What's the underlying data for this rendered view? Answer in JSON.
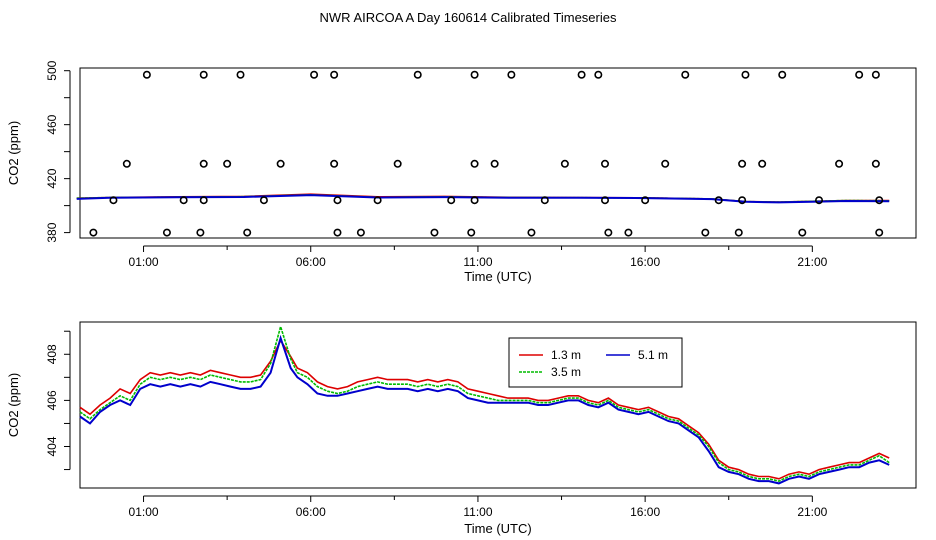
{
  "title": "NWR AIRCOA A  Day 160614  Calibrated Timeseries",
  "colors": {
    "s13": "#dd0000",
    "s35": "#00bb00",
    "s51": "#0000cc",
    "axis": "#000000"
  },
  "chart_data": [
    {
      "type": "scatter",
      "panel": "top",
      "xlabel": "Time (UTC)",
      "ylabel": "CO2 (ppm)",
      "xlim": [
        -0.9,
        24.1
      ],
      "ylim": [
        376,
        502
      ],
      "xticks": [
        1,
        6,
        11,
        16,
        21
      ],
      "xtick_labels": [
        "01:00",
        "06:00",
        "11:00",
        "16:00",
        "21:00"
      ],
      "yticks": [
        380,
        420,
        460,
        500
      ],
      "ytick_labels": [
        "380",
        "420",
        "460",
        "500"
      ],
      "yminor": [
        400,
        440,
        480
      ],
      "points": [
        [
          -0.5,
          380
        ],
        [
          0.1,
          404
        ],
        [
          0.5,
          431
        ],
        [
          1.1,
          497
        ],
        [
          1.7,
          380
        ],
        [
          2.2,
          404
        ],
        [
          2.7,
          380
        ],
        [
          2.8,
          404
        ],
        [
          2.8,
          431
        ],
        [
          2.8,
          497
        ],
        [
          3.5,
          431
        ],
        [
          3.9,
          497
        ],
        [
          4.1,
          380
        ],
        [
          4.6,
          404
        ],
        [
          5.1,
          431
        ],
        [
          6.1,
          497
        ],
        [
          6.7,
          497
        ],
        [
          6.7,
          431
        ],
        [
          6.8,
          380
        ],
        [
          6.8,
          404
        ],
        [
          7.5,
          380
        ],
        [
          8.0,
          404
        ],
        [
          8.6,
          431
        ],
        [
          9.2,
          497
        ],
        [
          9.7,
          380
        ],
        [
          10.2,
          404
        ],
        [
          10.8,
          380
        ],
        [
          10.9,
          404
        ],
        [
          10.9,
          431
        ],
        [
          10.9,
          497
        ],
        [
          11.5,
          431
        ],
        [
          12.0,
          497
        ],
        [
          12.6,
          380
        ],
        [
          13.0,
          404
        ],
        [
          13.6,
          431
        ],
        [
          14.1,
          497
        ],
        [
          14.6,
          497
        ],
        [
          14.8,
          431
        ],
        [
          14.8,
          404
        ],
        [
          14.9,
          380
        ],
        [
          15.5,
          380
        ],
        [
          16.0,
          404
        ],
        [
          16.6,
          431
        ],
        [
          17.2,
          497
        ],
        [
          17.8,
          380
        ],
        [
          18.2,
          404
        ],
        [
          18.8,
          380
        ],
        [
          18.9,
          404
        ],
        [
          18.9,
          431
        ],
        [
          19.0,
          497
        ],
        [
          19.5,
          431
        ],
        [
          20.1,
          497
        ],
        [
          20.7,
          380
        ],
        [
          21.2,
          404
        ],
        [
          21.8,
          431
        ],
        [
          22.4,
          497
        ],
        [
          22.9,
          431
        ],
        [
          22.9,
          497
        ],
        [
          23.0,
          404
        ],
        [
          23.0,
          380
        ]
      ],
      "series": [
        {
          "name": "1.3 m",
          "x": [
            -1,
            0,
            2,
            4,
            6,
            8,
            10,
            12,
            14,
            16,
            18,
            19,
            20,
            21,
            22,
            23.3
          ],
          "y": [
            405.5,
            406,
            406.5,
            406.8,
            408.5,
            406.5,
            406.8,
            406.2,
            406.0,
            405.8,
            405,
            403,
            402.6,
            403.2,
            403.8,
            403.7
          ]
        },
        {
          "name": "3.5 m",
          "x": [
            -1,
            0,
            2,
            4,
            6,
            8,
            10,
            12,
            14,
            16,
            18,
            19,
            20,
            21,
            22,
            23.3
          ],
          "y": [
            405.5,
            406,
            406.3,
            406.6,
            408.0,
            406.2,
            406.5,
            406.0,
            405.9,
            405.7,
            405,
            403,
            402.6,
            403.2,
            403.8,
            403.6
          ]
        },
        {
          "name": "5.1 m",
          "x": [
            -1,
            0,
            2,
            4,
            6,
            8,
            10,
            12,
            14,
            16,
            18,
            19,
            20,
            21,
            22,
            23.3
          ],
          "y": [
            405.0,
            405.8,
            406.2,
            406.4,
            407.8,
            406.0,
            406.3,
            405.8,
            405.8,
            405.6,
            404.8,
            402.8,
            402.4,
            402.9,
            403.4,
            403.3
          ]
        }
      ]
    },
    {
      "type": "line",
      "panel": "bottom",
      "xlabel": "Time (UTC)",
      "ylabel": "CO2 (ppm)",
      "xlim": [
        -0.9,
        24.1
      ],
      "ylim": [
        402.2,
        409.4
      ],
      "xticks": [
        1,
        6,
        11,
        16,
        21
      ],
      "xtick_labels": [
        "01:00",
        "06:00",
        "11:00",
        "16:00",
        "21:00"
      ],
      "yticks": [
        404,
        406,
        408
      ],
      "ytick_labels": [
        "404",
        "406",
        "408"
      ],
      "yminor": [
        403,
        405,
        407,
        409
      ],
      "legend": {
        "position": "upper-center",
        "entries": [
          "1.3 m",
          "3.5 m",
          "5.1 m"
        ]
      },
      "series": [
        {
          "name": "1.3 m",
          "x": [
            -0.9,
            -0.6,
            -0.3,
            0.0,
            0.3,
            0.6,
            0.9,
            1.2,
            1.5,
            1.8,
            2.1,
            2.4,
            2.7,
            3.0,
            3.3,
            3.6,
            3.9,
            4.2,
            4.5,
            4.8,
            5.1,
            5.4,
            5.6,
            5.9,
            6.2,
            6.5,
            6.8,
            7.1,
            7.4,
            7.7,
            8.0,
            8.3,
            8.6,
            8.9,
            9.2,
            9.5,
            9.8,
            10.1,
            10.4,
            10.7,
            11.0,
            11.3,
            11.6,
            11.9,
            12.2,
            12.5,
            12.8,
            13.1,
            13.4,
            13.7,
            14.0,
            14.3,
            14.6,
            14.9,
            15.2,
            15.5,
            15.8,
            16.1,
            16.4,
            16.7,
            17.0,
            17.3,
            17.6,
            17.9,
            18.2,
            18.5,
            18.8,
            19.1,
            19.4,
            19.7,
            20.0,
            20.3,
            20.6,
            20.9,
            21.2,
            21.5,
            21.8,
            22.1,
            22.4,
            22.7,
            23.0,
            23.3
          ],
          "y": [
            405.7,
            405.4,
            405.8,
            406.1,
            406.5,
            406.3,
            406.9,
            407.2,
            407.1,
            407.2,
            407.1,
            407.2,
            407.1,
            407.3,
            407.2,
            407.1,
            407.0,
            407.0,
            407.1,
            407.7,
            408.6,
            407.9,
            407.4,
            407.2,
            406.8,
            406.6,
            406.5,
            406.6,
            406.8,
            406.9,
            407.0,
            406.9,
            406.9,
            406.9,
            406.8,
            406.9,
            406.8,
            406.9,
            406.8,
            406.5,
            406.4,
            406.3,
            406.2,
            406.1,
            406.1,
            406.1,
            406.0,
            406.0,
            406.1,
            406.2,
            406.2,
            406.0,
            405.9,
            406.1,
            405.8,
            405.7,
            405.6,
            405.7,
            405.5,
            405.3,
            405.2,
            404.9,
            404.6,
            404.1,
            403.4,
            403.1,
            403.0,
            402.8,
            402.7,
            402.7,
            402.6,
            402.8,
            402.9,
            402.8,
            403.0,
            403.1,
            403.2,
            403.3,
            403.3,
            403.5,
            403.7,
            403.5
          ]
        },
        {
          "name": "3.5 m",
          "x": [
            -0.9,
            -0.6,
            -0.3,
            0.0,
            0.3,
            0.6,
            0.9,
            1.2,
            1.5,
            1.8,
            2.1,
            2.4,
            2.7,
            3.0,
            3.3,
            3.6,
            3.9,
            4.2,
            4.5,
            4.8,
            5.1,
            5.4,
            5.6,
            5.9,
            6.2,
            6.5,
            6.8,
            7.1,
            7.4,
            7.7,
            8.0,
            8.3,
            8.6,
            8.9,
            9.2,
            9.5,
            9.8,
            10.1,
            10.4,
            10.7,
            11.0,
            11.3,
            11.6,
            11.9,
            12.2,
            12.5,
            12.8,
            13.1,
            13.4,
            13.7,
            14.0,
            14.3,
            14.6,
            14.9,
            15.2,
            15.5,
            15.8,
            16.1,
            16.4,
            16.7,
            17.0,
            17.3,
            17.6,
            17.9,
            18.2,
            18.5,
            18.8,
            19.1,
            19.4,
            19.7,
            20.0,
            20.3,
            20.6,
            20.9,
            21.2,
            21.5,
            21.8,
            22.1,
            22.4,
            22.7,
            23.0,
            23.3
          ],
          "y": [
            405.5,
            405.2,
            405.6,
            405.9,
            406.2,
            406.0,
            406.7,
            407.0,
            406.9,
            407.0,
            406.9,
            407.0,
            406.9,
            407.1,
            407.0,
            406.9,
            406.8,
            406.8,
            406.9,
            407.6,
            409.2,
            407.8,
            407.2,
            407.0,
            406.6,
            406.4,
            406.3,
            406.4,
            406.6,
            406.7,
            406.8,
            406.7,
            406.7,
            406.7,
            406.6,
            406.7,
            406.6,
            406.7,
            406.6,
            406.3,
            406.2,
            406.1,
            406.0,
            406.0,
            406.0,
            406.0,
            405.9,
            405.9,
            406.0,
            406.1,
            406.1,
            405.9,
            405.8,
            406.0,
            405.7,
            405.6,
            405.5,
            405.6,
            405.4,
            405.2,
            405.1,
            404.8,
            404.5,
            404.0,
            403.3,
            403.0,
            402.9,
            402.7,
            402.6,
            402.6,
            402.5,
            402.7,
            402.8,
            402.7,
            402.9,
            403.0,
            403.1,
            403.2,
            403.2,
            403.4,
            403.6,
            403.3
          ]
        },
        {
          "name": "5.1 m",
          "x": [
            -0.9,
            -0.6,
            -0.3,
            0.0,
            0.3,
            0.6,
            0.9,
            1.2,
            1.5,
            1.8,
            2.1,
            2.4,
            2.7,
            3.0,
            3.3,
            3.6,
            3.9,
            4.2,
            4.5,
            4.8,
            5.1,
            5.4,
            5.6,
            5.9,
            6.2,
            6.5,
            6.8,
            7.1,
            7.4,
            7.7,
            8.0,
            8.3,
            8.6,
            8.9,
            9.2,
            9.5,
            9.8,
            10.1,
            10.4,
            10.7,
            11.0,
            11.3,
            11.6,
            11.9,
            12.2,
            12.5,
            12.8,
            13.1,
            13.4,
            13.7,
            14.0,
            14.3,
            14.6,
            14.9,
            15.2,
            15.5,
            15.8,
            16.1,
            16.4,
            16.7,
            17.0,
            17.3,
            17.6,
            17.9,
            18.2,
            18.5,
            18.8,
            19.1,
            19.4,
            19.7,
            20.0,
            20.3,
            20.6,
            20.9,
            21.2,
            21.5,
            21.8,
            22.1,
            22.4,
            22.7,
            23.0,
            23.3
          ],
          "y": [
            405.3,
            405.0,
            405.5,
            405.8,
            406.0,
            405.8,
            406.5,
            406.7,
            406.6,
            406.7,
            406.6,
            406.7,
            406.6,
            406.8,
            406.7,
            406.6,
            406.5,
            406.5,
            406.6,
            407.2,
            408.7,
            407.4,
            407.0,
            406.7,
            406.3,
            406.2,
            406.2,
            406.3,
            406.4,
            406.5,
            406.6,
            406.5,
            406.5,
            406.5,
            406.4,
            406.5,
            406.4,
            406.5,
            406.4,
            406.1,
            406.0,
            405.9,
            405.9,
            405.9,
            405.9,
            405.9,
            405.8,
            405.8,
            405.9,
            406.0,
            406.0,
            405.8,
            405.7,
            405.9,
            405.6,
            405.5,
            405.4,
            405.5,
            405.3,
            405.1,
            405.0,
            404.7,
            404.4,
            403.8,
            403.1,
            402.9,
            402.8,
            402.6,
            402.5,
            402.5,
            402.4,
            402.6,
            402.7,
            402.6,
            402.8,
            402.9,
            403.0,
            403.1,
            403.1,
            403.3,
            403.4,
            403.2
          ]
        }
      ]
    }
  ]
}
